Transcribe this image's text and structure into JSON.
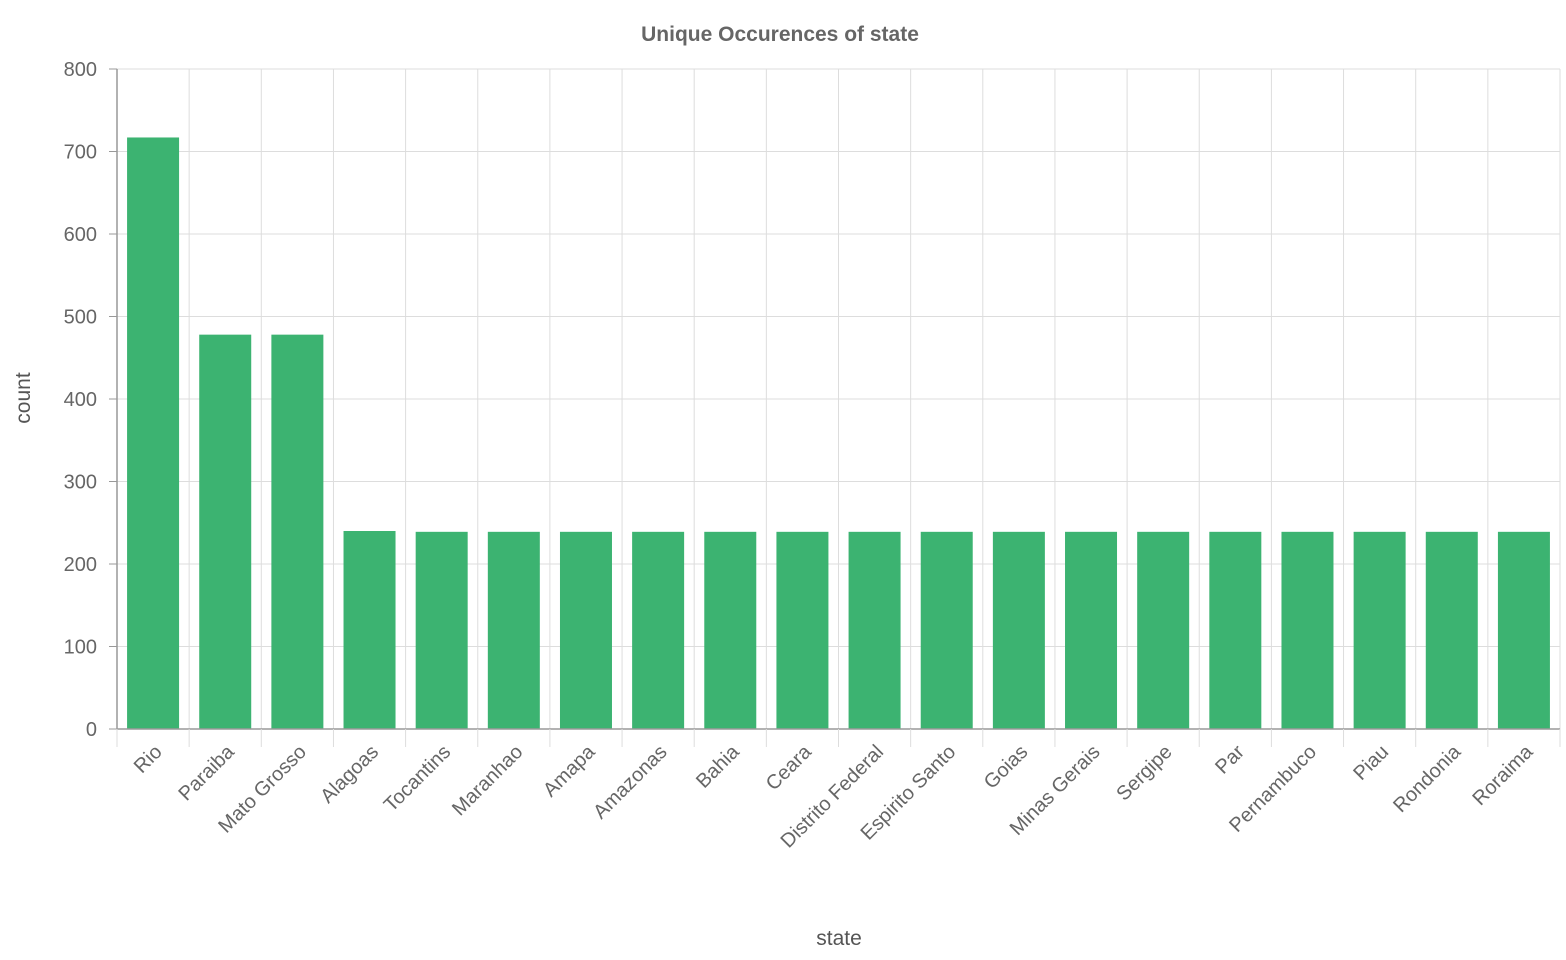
{
  "chart_data": {
    "type": "bar",
    "title": "Unique Occurences of state",
    "xlabel": "state",
    "ylabel": "count",
    "categories": [
      "Rio",
      "Paraiba",
      "Mato Grosso",
      "Alagoas",
      "Tocantins",
      "Maranhao",
      "Amapa",
      "Amazonas",
      "Bahia",
      "Ceara",
      "Distrito Federal",
      "Espirito Santo",
      "Goias",
      "Minas Gerais",
      "Sergipe",
      "Par",
      "Pernambuco",
      "Piau",
      "Rondonia",
      "Roraima"
    ],
    "values": [
      717,
      478,
      478,
      240,
      239,
      239,
      239,
      239,
      239,
      239,
      239,
      239,
      239,
      239,
      239,
      239,
      239,
      239,
      239,
      239
    ],
    "ylim": [
      0,
      800
    ],
    "yticks": [
      0,
      100,
      200,
      300,
      400,
      500,
      600,
      700,
      800
    ],
    "grid": true,
    "bar_color": "#3cb371",
    "grid_color": "#dddddd",
    "axis_color": "#999999"
  }
}
